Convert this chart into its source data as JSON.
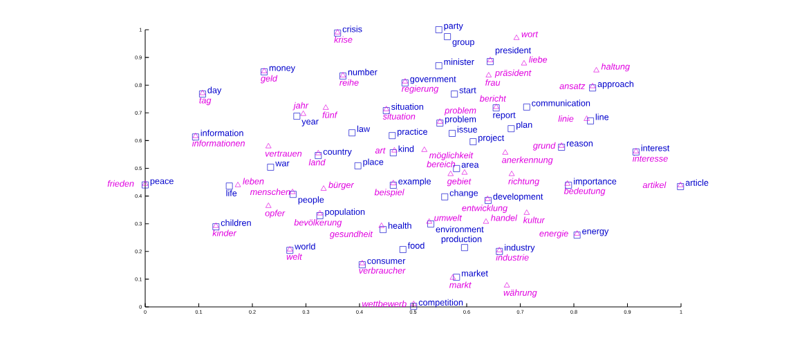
{
  "chart_data": {
    "type": "scatter",
    "xlim": [
      0,
      1
    ],
    "ylim": [
      0,
      1
    ],
    "xticks": [
      0,
      0.1,
      0.2,
      0.3,
      0.4,
      0.5,
      0.6,
      0.7,
      0.8,
      0.9,
      1
    ],
    "yticks": [
      0,
      0.1,
      0.2,
      0.3,
      0.4,
      0.5,
      0.6,
      0.7,
      0.8,
      0.9,
      1
    ],
    "grid": false,
    "series": [
      {
        "color": "#0000cc",
        "marker": "square",
        "x": [
          0,
          0.157,
          0.132,
          0.27,
          0.234,
          0.094,
          0.107,
          0.222,
          0.283,
          0.323,
          0.276,
          0.326,
          0.359,
          0.369,
          0.386,
          0.397,
          0.405,
          0.444,
          0.463,
          0.45,
          0.461,
          0.485,
          0.463,
          0.481,
          0.501,
          0.533,
          0.548,
          0.564,
          0.548,
          0.577,
          0.55,
          0.573,
          0.581,
          0.559,
          0.581,
          0.596,
          0.612,
          0.683,
          0.644,
          0.655,
          0.712,
          0.64,
          0.661,
          0.835,
          0.831,
          0.777,
          0.79,
          0.806,
          0.916,
          0.999
        ],
        "values": [
          0.44,
          0.436,
          0.289,
          0.204,
          0.504,
          0.613,
          0.768,
          0.848,
          0.688,
          0.546,
          0.406,
          0.329,
          0.988,
          0.833,
          0.628,
          0.509,
          0.152,
          0.279,
          0.556,
          0.708,
          0.618,
          0.808,
          0.439,
          0.207,
          0.002,
          0.299,
          1.0,
          0.975,
          0.87,
          0.768,
          0.663,
          0.626,
          0.499,
          0.397,
          0.107,
          0.214,
          0.596,
          0.643,
          0.885,
          0.718,
          0.721,
          0.384,
          0.2,
          0.79,
          0.671,
          0.576,
          0.439,
          0.259,
          0.559,
          0.434
        ],
        "value_labels": [
          "peace",
          "life",
          "children",
          "world",
          "war",
          "information",
          "day",
          "money",
          "year",
          "country",
          "people",
          "population",
          "crisis",
          "number",
          "law",
          "place",
          "consumer",
          "health",
          "kind",
          "situation",
          "practice",
          "government",
          "example",
          "food",
          "competition",
          "environment",
          "party",
          "group",
          "minister",
          "start",
          "problem",
          "issue",
          "area",
          "change",
          "market",
          "production",
          "project",
          "plan",
          "president",
          "report",
          "communication",
          "development",
          "industry",
          "approach",
          "line",
          "reason",
          "importance",
          "energy",
          "interest",
          "article"
        ]
      },
      {
        "color": "#e000e0",
        "marker": "triangle",
        "x": [
          0,
          0.173,
          0.132,
          0.27,
          0.23,
          0.094,
          0.107,
          0.222,
          0.295,
          0.337,
          0.23,
          0.323,
          0.275,
          0.333,
          0.326,
          0.359,
          0.369,
          0.405,
          0.441,
          0.465,
          0.45,
          0.485,
          0.463,
          0.501,
          0.53,
          0.521,
          0.55,
          0.57,
          0.596,
          0.574,
          0.644,
          0.641,
          0.707,
          0.693,
          0.655,
          0.672,
          0.684,
          0.639,
          0.636,
          0.712,
          0.661,
          0.675,
          0.842,
          0.835,
          0.824,
          0.777,
          0.788,
          0.806,
          0.916,
          0.999
        ],
        "values": [
          0.444,
          0.439,
          0.292,
          0.207,
          0.364,
          0.616,
          0.771,
          0.85,
          0.696,
          0.718,
          0.579,
          0.554,
          0.414,
          0.426,
          0.337,
          0.99,
          0.835,
          0.157,
          0.292,
          0.564,
          0.713,
          0.813,
          0.446,
          0.01,
          0.307,
          0.566,
          0.668,
          0.479,
          0.484,
          0.105,
          0.89,
          0.835,
          0.878,
          0.97,
          0.721,
          0.556,
          0.479,
          0.389,
          0.307,
          0.339,
          0.204,
          0.077,
          0.853,
          0.796,
          0.678,
          0.581,
          0.444,
          0.264,
          0.561,
          0.439
        ],
        "value_labels": [
          "frieden",
          "leben",
          "kinder",
          "welt",
          "opfer",
          "informationen",
          "tag",
          "geld",
          "jahr",
          "fünf",
          "vertrauen",
          "land",
          "menschen",
          "bürger",
          "bevölkerung",
          "krise",
          "reihe",
          "verbraucher",
          "gesundheit",
          "art",
          "situation",
          "regierung",
          "beispiel",
          "wettbewerb",
          "umwelt",
          "möglichkeit",
          "problem",
          "gebiet",
          "bereich",
          "markt",
          "präsident",
          "frau",
          "liebe",
          "wort",
          "bericht",
          "anerkennung",
          "richtung",
          "entwicklung",
          "handel",
          "kultur",
          "industrie",
          "währung",
          "haltung",
          "ansatz",
          "linie",
          "grund",
          "bedeutung",
          "energie",
          "interesse",
          "artikel"
        ]
      }
    ]
  }
}
